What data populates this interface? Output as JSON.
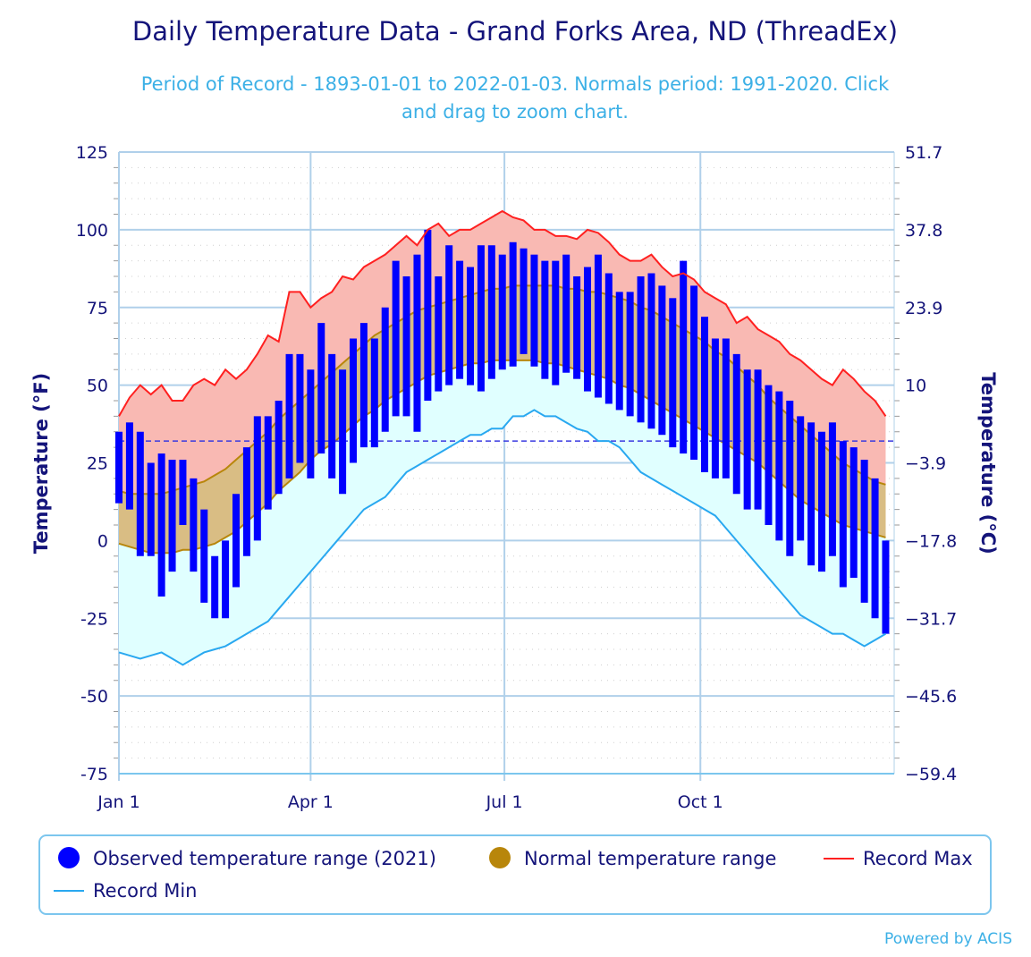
{
  "title": "Daily Temperature Data - Grand Forks Area, ND (ThreadEx)",
  "subtitle_line1": "Period of Record - 1893-01-01 to 2022-01-03. Normals period: 1991-2020. Click",
  "subtitle_line2": "and drag to zoom chart.",
  "credit": "Powered by ACIS",
  "colors": {
    "observed": "#0000ff",
    "normal_fill": "#d9bd84",
    "normal_stroke": "#b8860b",
    "record_max": "#ff2020",
    "record_max_fill": "#f9b9b3",
    "record_min": "#29a8f0",
    "record_min_fill": "#e0ffff",
    "freezing_line": "#3a3ae0",
    "title": "#14147a",
    "subtitle": "#3cb0e6"
  },
  "chart_data": {
    "type": "area",
    "xlabel": "",
    "ylabel": "Temperature (°F)",
    "ylabel_right": "Temperature (°C)",
    "ylim": [
      -75,
      125
    ],
    "yticks": [
      125,
      100,
      75,
      50,
      25,
      0,
      -25,
      -50,
      -75
    ],
    "yticks_right": [
      "51.7",
      "37.8",
      "23.9",
      "10",
      "-3.9",
      "-17.8",
      "-31.7",
      "-45.6",
      "-59.4"
    ],
    "xlim": [
      "2021-01-01",
      "2021-12-31"
    ],
    "xticks": [
      {
        "date": "2021-01-01",
        "label": "Jan 1"
      },
      {
        "date": "2021-04-01",
        "label": "Apr 1"
      },
      {
        "date": "2021-07-01",
        "label": "Jul 1"
      },
      {
        "date": "2021-10-01",
        "label": "Oct 1"
      }
    ],
    "grid": true,
    "reference_line": 32,
    "legend_placement": "bottom",
    "dates_start": "2021-01-01",
    "dates_step_days": 5,
    "series": [
      {
        "name": "Observed temperature range (2021)",
        "kind": "range",
        "high": [
          35,
          38,
          35,
          25,
          28,
          26,
          26,
          20,
          10,
          -5,
          0,
          15,
          30,
          40,
          40,
          45,
          60,
          60,
          55,
          70,
          60,
          55,
          65,
          70,
          65,
          75,
          90,
          85,
          92,
          100,
          85,
          95,
          90,
          88,
          95,
          95,
          92,
          96,
          94,
          92,
          90,
          90,
          92,
          85,
          88,
          92,
          86,
          80,
          80,
          85,
          86,
          82,
          78,
          90,
          82,
          72,
          65,
          65,
          60,
          55,
          55,
          50,
          48,
          45,
          40,
          38,
          35,
          38,
          32,
          30,
          26,
          20,
          0
        ],
        "low": [
          12,
          10,
          -5,
          -5,
          -18,
          -10,
          5,
          -10,
          -20,
          -25,
          -25,
          -15,
          -5,
          0,
          10,
          15,
          20,
          25,
          20,
          28,
          20,
          15,
          25,
          30,
          30,
          35,
          40,
          40,
          35,
          45,
          48,
          50,
          52,
          50,
          48,
          52,
          55,
          56,
          60,
          56,
          52,
          50,
          54,
          52,
          48,
          46,
          44,
          42,
          40,
          38,
          36,
          34,
          30,
          28,
          26,
          22,
          20,
          20,
          15,
          10,
          10,
          5,
          0,
          -5,
          0,
          -8,
          -10,
          -5,
          -15,
          -12,
          -20,
          -25,
          -30
        ]
      },
      {
        "name": "Normal temperature range",
        "kind": "range",
        "high": [
          16,
          15,
          15,
          15,
          15,
          16,
          17,
          18,
          19,
          21,
          23,
          26,
          29,
          32,
          35,
          39,
          42,
          45,
          48,
          51,
          54,
          57,
          60,
          63,
          66,
          68,
          70,
          72,
          74,
          75,
          76,
          77,
          78,
          79,
          80,
          81,
          81,
          82,
          82,
          82,
          82,
          82,
          81,
          81,
          80,
          80,
          79,
          78,
          77,
          75,
          74,
          72,
          70,
          68,
          66,
          64,
          61,
          59,
          56,
          53,
          50,
          46,
          43,
          40,
          37,
          34,
          31,
          28,
          25,
          23,
          21,
          19,
          18
        ],
        "low": [
          -1,
          -2,
          -3,
          -4,
          -4,
          -4,
          -3,
          -3,
          -2,
          -1,
          1,
          3,
          6,
          9,
          12,
          16,
          19,
          22,
          26,
          29,
          31,
          34,
          37,
          40,
          42,
          45,
          47,
          49,
          51,
          53,
          54,
          55,
          56,
          57,
          57,
          58,
          58,
          58,
          58,
          58,
          57,
          57,
          56,
          55,
          54,
          53,
          52,
          50,
          49,
          47,
          45,
          43,
          41,
          39,
          37,
          35,
          33,
          31,
          29,
          27,
          25,
          22,
          19,
          16,
          13,
          11,
          9,
          7,
          5,
          4,
          3,
          2,
          1
        ]
      },
      {
        "name": "Record Max",
        "kind": "line",
        "values": [
          40,
          46,
          50,
          47,
          50,
          45,
          45,
          50,
          52,
          50,
          55,
          52,
          55,
          60,
          66,
          64,
          80,
          80,
          75,
          78,
          80,
          85,
          84,
          88,
          90,
          92,
          95,
          98,
          95,
          100,
          102,
          98,
          100,
          100,
          102,
          104,
          106,
          104,
          103,
          100,
          100,
          98,
          98,
          97,
          100,
          99,
          96,
          92,
          90,
          90,
          92,
          88,
          85,
          86,
          84,
          80,
          78,
          76,
          70,
          72,
          68,
          66,
          64,
          60,
          58,
          55,
          52,
          50,
          55,
          52,
          48,
          45,
          40
        ]
      },
      {
        "name": "Record Min",
        "kind": "line",
        "values": [
          -36,
          -37,
          -38,
          -37,
          -36,
          -38,
          -40,
          -38,
          -36,
          -35,
          -34,
          -32,
          -30,
          -28,
          -26,
          -22,
          -18,
          -14,
          -10,
          -6,
          -2,
          2,
          6,
          10,
          12,
          14,
          18,
          22,
          24,
          26,
          28,
          30,
          32,
          34,
          34,
          36,
          36,
          40,
          40,
          42,
          40,
          40,
          38,
          36,
          35,
          32,
          32,
          30,
          26,
          22,
          20,
          18,
          16,
          14,
          12,
          10,
          8,
          4,
          0,
          -4,
          -8,
          -12,
          -16,
          -20,
          -24,
          -26,
          -28,
          -30,
          -30,
          -32,
          -34,
          -32,
          -30
        ]
      }
    ]
  }
}
